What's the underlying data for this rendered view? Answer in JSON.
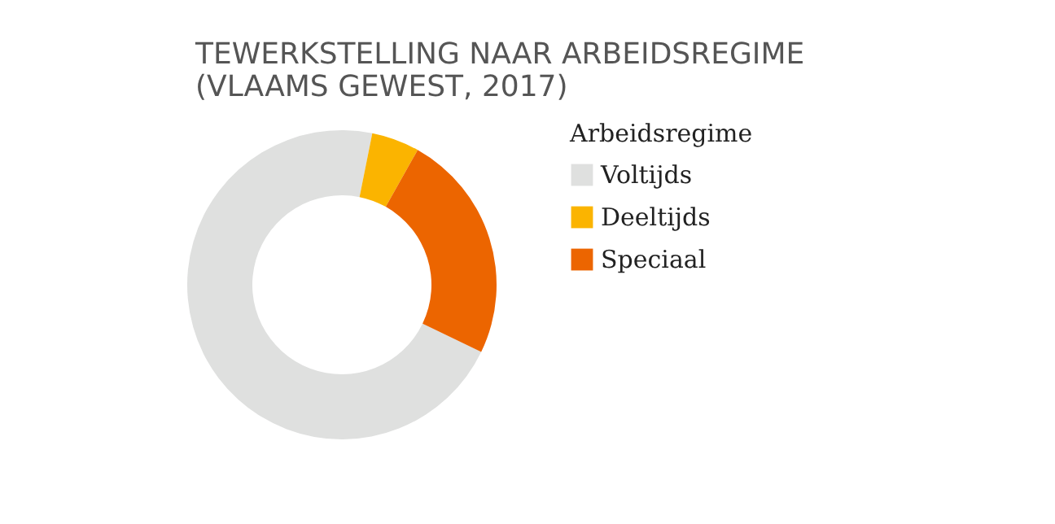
{
  "chart_data": {
    "type": "donut",
    "title": [
      "TEWERKSTELLING NAAR ARBEIDSREGIME",
      "(VLAAMS GEWEST, 2017)"
    ],
    "legend_title": "Arbeidsregime",
    "legend": "right",
    "categories": [
      "Voltijds",
      "Deeltijds",
      "Speciaal"
    ],
    "values": [
      71,
      5,
      24
    ],
    "colors": [
      "#dfe0df",
      "#fbb400",
      "#ec6500"
    ]
  }
}
